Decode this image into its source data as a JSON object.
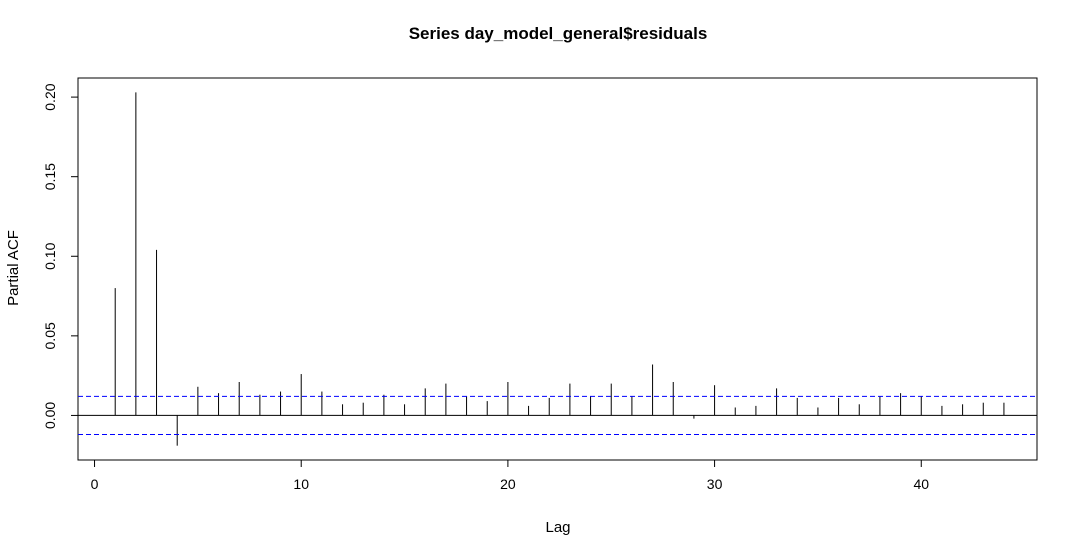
{
  "chart_data": {
    "type": "bar",
    "title": "Series  day_model_general$residuals",
    "xlabel": "Lag",
    "ylabel": "Partial ACF",
    "xlim": [
      -0.8,
      45.6
    ],
    "ylim": [
      -0.028,
      0.212
    ],
    "x_ticks": [
      0,
      10,
      20,
      30,
      40
    ],
    "y_ticks": [
      0.0,
      0.05,
      0.1,
      0.15,
      0.2
    ],
    "y_tick_labels": [
      "0.00",
      "0.05",
      "0.10",
      "0.15",
      "0.20"
    ],
    "x_tick_labels": [
      "0",
      "10",
      "20",
      "30",
      "40"
    ],
    "confidence_limits": [
      0.012,
      -0.012
    ],
    "confidence_color": "#0000ff",
    "grid": false,
    "lags": [
      1,
      2,
      3,
      4,
      5,
      6,
      7,
      8,
      9,
      10,
      11,
      12,
      13,
      14,
      15,
      16,
      17,
      18,
      19,
      20,
      21,
      22,
      23,
      24,
      25,
      26,
      27,
      28,
      29,
      30,
      31,
      32,
      33,
      34,
      35,
      36,
      37,
      38,
      39,
      40,
      41,
      42,
      43,
      44
    ],
    "values": [
      0.08,
      0.203,
      0.104,
      -0.019,
      0.018,
      0.014,
      0.021,
      0.013,
      0.015,
      0.026,
      0.015,
      0.007,
      0.008,
      0.013,
      0.007,
      0.017,
      0.02,
      0.012,
      0.009,
      0.021,
      0.006,
      0.011,
      0.02,
      0.012,
      0.02,
      0.012,
      0.032,
      0.021,
      -0.002,
      0.019,
      0.005,
      0.006,
      0.017,
      0.011,
      0.005,
      0.011,
      0.007,
      0.012,
      0.014,
      0.012,
      0.006,
      0.007,
      0.008,
      0.008
    ]
  }
}
